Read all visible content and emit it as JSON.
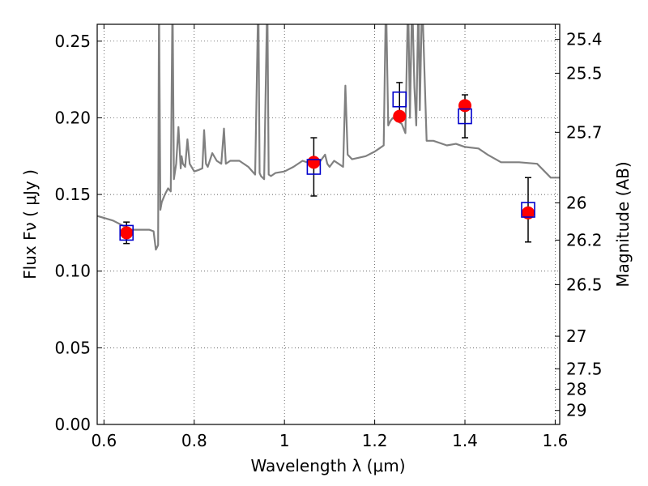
{
  "chart_data": {
    "type": "scatter",
    "xlabel": "Wavelength  λ (μm)",
    "ylabel": "Flux  Fν  ( μJy )",
    "y2label": "Magnitude (AB)",
    "xlim": [
      0.585,
      1.61
    ],
    "ylim": [
      0.0,
      0.261
    ],
    "grid": true,
    "x_ticks": [
      0.6,
      0.8,
      1.0,
      1.2,
      1.4,
      1.6
    ],
    "x_tick_labels": [
      "0.6",
      "0.8",
      "1",
      "1.2",
      "1.4",
      "1.6"
    ],
    "y_ticks": [
      0.0,
      0.05,
      0.1,
      0.15,
      0.2,
      0.25
    ],
    "y_tick_labels": [
      "0.00",
      "0.05",
      "0.10",
      "0.15",
      "0.20",
      "0.25"
    ],
    "mag_ticks": [
      25.4,
      25.5,
      25.7,
      26,
      26.2,
      26.5,
      27,
      27.5,
      28,
      29
    ],
    "mag_tick_labels": [
      "25.4",
      "25.5",
      "25.7",
      "26",
      "26.2",
      "26.5",
      "27",
      "27.5",
      "28",
      "29"
    ],
    "model_spectrum": {
      "color": "#808080",
      "x": [
        0.585,
        0.62,
        0.66,
        0.7,
        0.71,
        0.715,
        0.72,
        0.722,
        0.725,
        0.728,
        0.735,
        0.742,
        0.748,
        0.752,
        0.755,
        0.757,
        0.76,
        0.765,
        0.77,
        0.772,
        0.775,
        0.78,
        0.785,
        0.79,
        0.8,
        0.81,
        0.818,
        0.822,
        0.826,
        0.83,
        0.84,
        0.85,
        0.86,
        0.866,
        0.87,
        0.88,
        0.9,
        0.92,
        0.935,
        0.942,
        0.945,
        0.948,
        0.955,
        0.962,
        0.965,
        0.97,
        0.98,
        1.0,
        1.02,
        1.04,
        1.06,
        1.08,
        1.09,
        1.095,
        1.1,
        1.11,
        1.12,
        1.13,
        1.135,
        1.14,
        1.15,
        1.18,
        1.2,
        1.21,
        1.22,
        1.225,
        1.23,
        1.235,
        1.24,
        1.25,
        1.26,
        1.268,
        1.274,
        1.278,
        1.283,
        1.288,
        1.292,
        1.297,
        1.3,
        1.305,
        1.315,
        1.33,
        1.36,
        1.38,
        1.4,
        1.43,
        1.45,
        1.48,
        1.52,
        1.56,
        1.59,
        1.6,
        1.61
      ],
      "y": [
        0.136,
        0.133,
        0.127,
        0.127,
        0.126,
        0.114,
        0.117,
        0.28,
        0.14,
        0.145,
        0.15,
        0.154,
        0.152,
        0.28,
        0.16,
        0.164,
        0.17,
        0.194,
        0.167,
        0.175,
        0.17,
        0.168,
        0.186,
        0.17,
        0.165,
        0.166,
        0.167,
        0.192,
        0.17,
        0.168,
        0.177,
        0.172,
        0.17,
        0.193,
        0.17,
        0.172,
        0.172,
        0.168,
        0.163,
        0.28,
        0.164,
        0.162,
        0.16,
        0.28,
        0.163,
        0.162,
        0.164,
        0.165,
        0.168,
        0.172,
        0.17,
        0.172,
        0.176,
        0.17,
        0.168,
        0.172,
        0.17,
        0.168,
        0.221,
        0.176,
        0.173,
        0.175,
        0.178,
        0.18,
        0.182,
        0.28,
        0.195,
        0.198,
        0.2,
        0.198,
        0.196,
        0.19,
        0.28,
        0.2,
        0.28,
        0.22,
        0.195,
        0.28,
        0.205,
        0.28,
        0.185,
        0.185,
        0.182,
        0.183,
        0.181,
        0.18,
        0.176,
        0.171,
        0.171,
        0.17,
        0.161,
        0.161,
        0.161
      ]
    },
    "observed": {
      "marker": "square-open",
      "color": "#0000cc",
      "errcolor": "#000000",
      "points": [
        {
          "x": 0.65,
          "y": 0.125,
          "err": 0.007
        },
        {
          "x": 1.065,
          "y": 0.168,
          "err": 0.019
        },
        {
          "x": 1.255,
          "y": 0.212,
          "err": 0.011
        },
        {
          "x": 1.4,
          "y": 0.201,
          "err": 0.014
        },
        {
          "x": 1.54,
          "y": 0.14,
          "err": 0.021
        }
      ]
    },
    "model_photometry": {
      "marker": "circle-filled",
      "color": "#ff0000",
      "points": [
        {
          "x": 0.65,
          "y": 0.125
        },
        {
          "x": 1.065,
          "y": 0.171
        },
        {
          "x": 1.255,
          "y": 0.201
        },
        {
          "x": 1.4,
          "y": 0.208
        },
        {
          "x": 1.54,
          "y": 0.138
        }
      ]
    }
  }
}
